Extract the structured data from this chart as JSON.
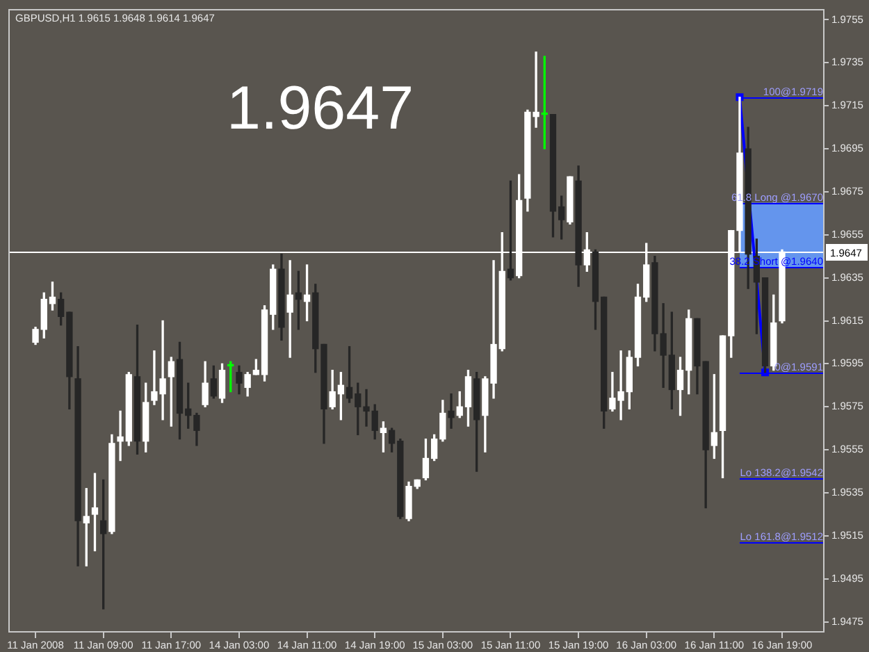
{
  "chart_data": {
    "type": "candlestick",
    "title": "GBPUSD,H1 1.9615 1.9648 1.9614 1.9647",
    "annotations": [
      "1.9647"
    ],
    "categories": [
      "11 Jan 2008",
      null,
      null,
      null,
      null,
      null,
      null,
      null,
      "11 Jan 09:00",
      null,
      null,
      null,
      null,
      null,
      null,
      null,
      "11 Jan 17:00",
      null,
      null,
      null,
      null,
      null,
      null,
      null,
      "14 Jan 03:00",
      null,
      null,
      null,
      null,
      null,
      null,
      null,
      "14 Jan 11:00",
      null,
      null,
      null,
      null,
      null,
      null,
      null,
      "14 Jan 19:00",
      null,
      null,
      null,
      null,
      null,
      null,
      null,
      "15 Jan 03:00",
      null,
      null,
      null,
      null,
      null,
      null,
      null,
      "15 Jan 11:00",
      null,
      null,
      null,
      null,
      null,
      null,
      null,
      "15 Jan 19:00",
      null,
      null,
      null,
      null,
      null,
      null,
      null,
      "16 Jan 03:00",
      null,
      null,
      null,
      null,
      null,
      null,
      null,
      "16 Jan 11:00",
      null,
      null,
      null,
      null,
      null,
      null,
      null,
      "16 Jan 19:00"
    ],
    "series": [
      {
        "ohlc": [
          [
            1.9605,
            1.9612,
            1.9604,
            1.9611
          ],
          [
            1.9611,
            1.9628,
            1.9607,
            1.9625
          ],
          [
            1.9623,
            1.9633,
            1.962,
            1.9626
          ],
          [
            1.9625,
            1.9628,
            1.9613,
            1.9617
          ],
          [
            1.9619,
            1.9619,
            1.9574,
            1.9589
          ],
          [
            1.9588,
            1.9603,
            1.9501,
            1.9522
          ],
          [
            1.9521,
            1.9537,
            1.9501,
            1.9524
          ],
          [
            1.9525,
            1.9544,
            1.9508,
            1.9528
          ],
          [
            1.9522,
            1.9541,
            1.9481,
            1.9516
          ],
          [
            1.9517,
            1.9562,
            1.9516,
            1.9558
          ],
          [
            1.9559,
            1.9573,
            1.955,
            1.9561
          ],
          [
            1.9559,
            1.9591,
            1.9557,
            1.959
          ],
          [
            1.9589,
            1.9613,
            1.9553,
            1.9559
          ],
          [
            1.9559,
            1.9586,
            1.9554,
            1.9577
          ],
          [
            1.9578,
            1.9601,
            1.9576,
            1.9582
          ],
          [
            1.9581,
            1.9615,
            1.9569,
            1.9588
          ],
          [
            1.9589,
            1.9598,
            1.9566,
            1.9596
          ],
          [
            1.9597,
            1.9605,
            1.956,
            1.9572
          ],
          [
            1.9574,
            1.9586,
            1.9565,
            1.9571
          ],
          [
            1.9571,
            1.9572,
            1.9557,
            1.9564
          ],
          [
            1.9576,
            1.9596,
            1.9575,
            1.9586
          ],
          [
            1.9588,
            1.9594,
            1.9579,
            1.958
          ],
          [
            1.9579,
            1.9595,
            1.9577,
            1.9592
          ],
          [
            1.9594,
            1.9596,
            1.9582,
            1.9594
          ],
          [
            1.9591,
            1.9594,
            1.9581,
            1.9586
          ],
          [
            1.9584,
            1.9591,
            1.958,
            1.959
          ],
          [
            1.959,
            1.9597,
            1.959,
            1.9592
          ],
          [
            1.959,
            1.9622,
            1.9587,
            1.962
          ],
          [
            1.9618,
            1.9641,
            1.9611,
            1.9639
          ],
          [
            1.9639,
            1.9646,
            1.9606,
            1.9612
          ],
          [
            1.9619,
            1.9643,
            1.9598,
            1.9627
          ],
          [
            1.9628,
            1.9638,
            1.9611,
            1.9625
          ],
          [
            1.9624,
            1.9641,
            1.9615,
            1.9627
          ],
          [
            1.9628,
            1.9632,
            1.9591,
            1.9602
          ],
          [
            1.9604,
            1.9604,
            1.9558,
            1.9574
          ],
          [
            1.9575,
            1.9592,
            1.9574,
            1.9582
          ],
          [
            1.9581,
            1.9591,
            1.9569,
            1.9585
          ],
          [
            1.9584,
            1.9603,
            1.9577,
            1.9579
          ],
          [
            1.9581,
            1.9586,
            1.9562,
            1.9575
          ],
          [
            1.9575,
            1.9583,
            1.9566,
            1.9573
          ],
          [
            1.9573,
            1.9576,
            1.956,
            1.9564
          ],
          [
            1.9563,
            1.9568,
            1.9554,
            1.9565
          ],
          [
            1.9564,
            1.9565,
            1.9554,
            1.9558
          ],
          [
            1.9559,
            1.956,
            1.9523,
            1.9524
          ],
          [
            1.9523,
            1.954,
            1.9522,
            1.9538
          ],
          [
            1.9538,
            1.9541,
            1.9537,
            1.9541
          ],
          [
            1.9542,
            1.956,
            1.9541,
            1.9551
          ],
          [
            1.9551,
            1.9562,
            1.955,
            1.956
          ],
          [
            1.956,
            1.9578,
            1.9559,
            1.9572
          ],
          [
            1.9573,
            1.9581,
            1.9565,
            1.957
          ],
          [
            1.9571,
            1.9582,
            1.957,
            1.9575
          ],
          [
            1.9575,
            1.9592,
            1.9566,
            1.9589
          ],
          [
            1.9588,
            1.9591,
            1.9545,
            1.9569
          ],
          [
            1.9571,
            1.9589,
            1.9554,
            1.9588
          ],
          [
            1.9586,
            1.9643,
            1.9579,
            1.9604
          ],
          [
            1.9602,
            1.9656,
            1.9601,
            1.9638
          ],
          [
            1.9639,
            1.968,
            1.9634,
            1.9635
          ],
          [
            1.9636,
            1.9683,
            1.9635,
            1.9671
          ],
          [
            1.9672,
            1.9713,
            1.9666,
            1.9712
          ],
          [
            1.971,
            1.974,
            1.9705,
            1.9712
          ],
          [
            1.9711,
            1.9738,
            1.9695,
            1.9711
          ],
          [
            1.9711,
            1.9711,
            1.9654,
            1.9666
          ],
          [
            1.9668,
            1.9673,
            1.9653,
            1.9662
          ],
          [
            1.9661,
            1.9682,
            1.966,
            1.9682
          ],
          [
            1.968,
            1.9687,
            1.9631,
            1.9641
          ],
          [
            1.9641,
            1.9656,
            1.9638,
            1.9648
          ],
          [
            1.9647,
            1.9648,
            1.9611,
            1.9624
          ],
          [
            1.9626,
            1.9626,
            1.9565,
            1.9573
          ],
          [
            1.9574,
            1.9591,
            1.9573,
            1.9579
          ],
          [
            1.9578,
            1.9601,
            1.9569,
            1.9582
          ],
          [
            1.9582,
            1.9601,
            1.9574,
            1.9598
          ],
          [
            1.9598,
            1.9632,
            1.9594,
            1.9626
          ],
          [
            1.9626,
            1.9651,
            1.9624,
            1.9641
          ],
          [
            1.9642,
            1.9645,
            1.9601,
            1.9609
          ],
          [
            1.9609,
            1.9623,
            1.9584,
            1.9599
          ],
          [
            1.9599,
            1.9619,
            1.9574,
            1.9583
          ],
          [
            1.9583,
            1.9598,
            1.9571,
            1.9592
          ],
          [
            1.9592,
            1.962,
            1.9581,
            1.9616
          ],
          [
            1.9616,
            1.9616,
            1.9581,
            1.9594
          ],
          [
            1.9596,
            1.9596,
            1.9528,
            1.9555
          ],
          [
            1.9557,
            1.959,
            1.9551,
            1.9563
          ],
          [
            1.9564,
            1.9608,
            1.9542,
            1.9608
          ],
          [
            1.9608,
            1.9657,
            1.9598,
            1.9657
          ],
          [
            1.9657,
            1.9719,
            1.9647,
            1.9693
          ],
          [
            1.9695,
            1.9705,
            1.963,
            1.9646
          ],
          [
            1.9645,
            1.9653,
            1.9609,
            1.9633
          ],
          [
            1.9635,
            1.9635,
            1.9591,
            1.9594
          ],
          [
            1.9594,
            1.9627,
            1.9592,
            1.9614
          ],
          [
            1.9615,
            1.9648,
            1.9614,
            1.9647
          ]
        ],
        "colors": [
          "#ffffff",
          "#ffffff",
          "#ffffff",
          "#262626",
          "#262626",
          "#262626",
          "#ffffff",
          "#ffffff",
          "#262626",
          "#ffffff",
          "#ffffff",
          "#ffffff",
          "#262626",
          "#ffffff",
          "#ffffff",
          "#ffffff",
          "#ffffff",
          "#262626",
          "#262626",
          "#262626",
          "#ffffff",
          "#262626",
          "#ffffff",
          "#00ff00",
          "#262626",
          "#ffffff",
          "#ffffff",
          "#ffffff",
          "#ffffff",
          "#262626",
          "#ffffff",
          "#262626",
          "#ffffff",
          "#262626",
          "#262626",
          "#ffffff",
          "#ffffff",
          "#262626",
          "#262626",
          "#262626",
          "#262626",
          "#ffffff",
          "#262626",
          "#262626",
          "#ffffff",
          "#ffffff",
          "#ffffff",
          "#ffffff",
          "#ffffff",
          "#262626",
          "#ffffff",
          "#ffffff",
          "#262626",
          "#ffffff",
          "#ffffff",
          "#ffffff",
          "#262626",
          "#ffffff",
          "#ffffff",
          "#ffffff",
          "#00ff00",
          "#262626",
          "#262626",
          "#ffffff",
          "#262626",
          "#ffffff",
          "#262626",
          "#262626",
          "#ffffff",
          "#ffffff",
          "#ffffff",
          "#ffffff",
          "#ffffff",
          "#262626",
          "#262626",
          "#262626",
          "#ffffff",
          "#ffffff",
          "#262626",
          "#262626",
          "#ffffff",
          "#ffffff",
          "#ffffff",
          "#ffffff",
          "#262626",
          "#262626",
          "#262626",
          "#ffffff",
          "#ffffff"
        ]
      },
      {
        "type": "line",
        "color": "#0000ff",
        "marker": "square",
        "values": [
          null,
          null,
          null,
          null,
          null,
          null,
          null,
          null,
          null,
          null,
          null,
          null,
          null,
          null,
          null,
          null,
          null,
          null,
          null,
          null,
          null,
          null,
          null,
          null,
          null,
          null,
          null,
          null,
          null,
          null,
          null,
          null,
          null,
          null,
          null,
          null,
          null,
          null,
          null,
          null,
          null,
          null,
          null,
          null,
          null,
          null,
          null,
          null,
          null,
          null,
          null,
          null,
          null,
          null,
          null,
          null,
          null,
          null,
          null,
          null,
          null,
          null,
          null,
          null,
          null,
          null,
          null,
          null,
          null,
          null,
          null,
          null,
          null,
          null,
          null,
          null,
          null,
          null,
          null,
          null,
          null,
          null,
          null,
          1.9719,
          null,
          null,
          1.9591,
          null,
          null
        ]
      }
    ],
    "ylim": [
      1.947,
      1.976
    ],
    "yticks": [
      1.9475,
      1.9495,
      1.9515,
      1.9535,
      1.9555,
      1.9575,
      1.9595,
      1.9615,
      1.9635,
      1.9655,
      1.9675,
      1.9695,
      1.9715,
      1.9735,
      1.9755
    ],
    "ref_lines": [
      {
        "axis": "y",
        "value": 1.9647,
        "label": "1.9647",
        "color": "#ffffff"
      },
      {
        "axis": "y",
        "value": 1.9719,
        "label": "100@1.9719",
        "color": "#0000ff"
      },
      {
        "axis": "y",
        "value": 1.967,
        "label": "61.8 Long @1.9670",
        "color": "#0000ff"
      },
      {
        "axis": "y",
        "value": 1.964,
        "label": "38.2 Short @1.9640",
        "color": "#0000ff"
      },
      {
        "axis": "y",
        "value": 1.9591,
        "label": "0@1.9591",
        "color": "#0000ff"
      },
      {
        "axis": "y",
        "value": 1.9542,
        "label": "Lo 138.2@1.9542",
        "color": "#0000ff"
      },
      {
        "axis": "y",
        "value": 1.9512,
        "label": "Lo 161.8@1.9512",
        "color": "#0000ff"
      }
    ],
    "bands": [
      {
        "axis": "y",
        "from": 1.964,
        "to": 1.967,
        "color": "#6495ed"
      }
    ]
  }
}
